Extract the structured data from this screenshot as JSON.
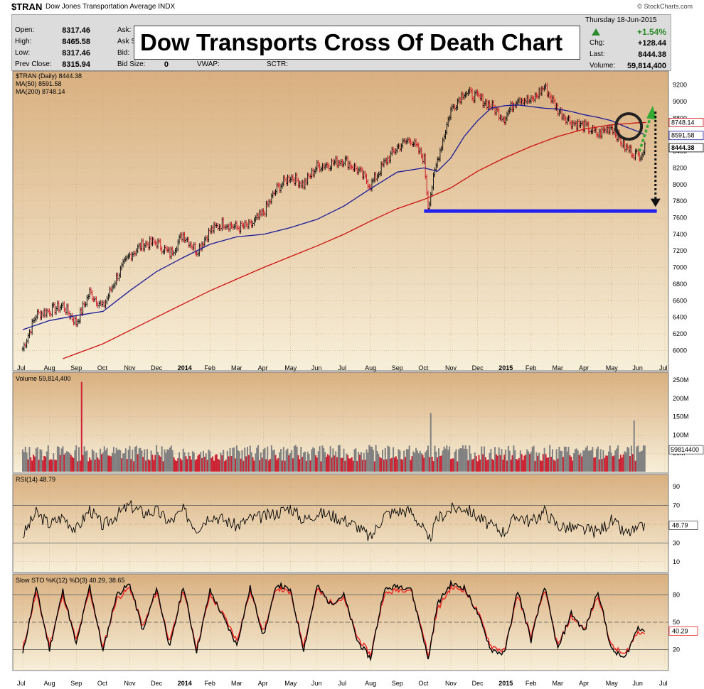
{
  "header": {
    "symbol": "$TRAN",
    "name": "Dow Jones Transportation Average INDX",
    "credit": "© StockCharts.com",
    "date": "Thursday  18-Jun-2015",
    "pct_change": "+1.54%",
    "chg_label": "Chg:",
    "chg_value": "+128.44",
    "last_label": "Last:",
    "last_value": "8444.38",
    "volume_label": "Volume:",
    "volume_value": "59,814,400",
    "open_label": "Open:",
    "open_value": "8317.46",
    "high_label": "High:",
    "high_value": "8465.58",
    "low_label": "Low:",
    "low_value": "8317.46",
    "prev_label": "Prev Close:",
    "prev_value": "8315.94",
    "ask_label": "Ask:",
    "asks_label": "Ask S",
    "bid_label": "Bid:",
    "bidsize_label": "Bid Size:",
    "bidsize_value": "0",
    "vwap_label": "VWAP:",
    "sctr_label": "SCTR:"
  },
  "overlay_title": "Dow Transports Cross Of Death Chart",
  "colors": {
    "panel_top": "#d9b080",
    "panel_bottom": "#f7efd9",
    "price_up": "#000000",
    "price_down": "#cc1122",
    "ma50": "#1a1a99",
    "ma200": "#cc1111",
    "support": "#2222ee",
    "green_arrow": "#33aa33",
    "rsi_line": "#000000",
    "sto_k": "#000000",
    "sto_d": "#ee2222",
    "vol_up": "#808080",
    "vol_down": "#cc2233"
  },
  "chart_data": {
    "type": "line",
    "title": "Dow Transports Cross Of Death Chart",
    "x_months": [
      "Jul",
      "Aug",
      "Sep",
      "Oct",
      "Nov",
      "Dec",
      "2014",
      "Feb",
      "Mar",
      "Apr",
      "May",
      "Jun",
      "Jul",
      "Aug",
      "Sep",
      "Oct",
      "Nov",
      "Dec",
      "2015",
      "Feb",
      "Mar",
      "Apr",
      "May",
      "Jun",
      "Jul"
    ],
    "price_panel": {
      "legend": [
        "$TRAN (Daily) 8444.38",
        "MA(50) 8591.58",
        "MA(200) 8748.14"
      ],
      "y_ticks": [
        6000,
        6200,
        6400,
        6600,
        6800,
        7000,
        7200,
        7400,
        7600,
        7800,
        8000,
        8200,
        8400,
        8600,
        8800,
        9000,
        9200
      ],
      "ylim": [
        5900,
        9300
      ],
      "price_tags": [
        "8748.14",
        "8591.58",
        "8444.38"
      ],
      "series": [
        {
          "name": "$TRAN (Daily) 8444.38",
          "month_idx": [
            0,
            0.5,
            1,
            1.5,
            2,
            2.5,
            3,
            3.5,
            4,
            4.5,
            5,
            5.5,
            6,
            6.5,
            7,
            7.5,
            8,
            8.5,
            9,
            9.5,
            10,
            10.5,
            11,
            11.5,
            12,
            12.5,
            13,
            13.5,
            14,
            14.5,
            15,
            15.15,
            15.5,
            16,
            16.5,
            17,
            17.5,
            18,
            18.5,
            19,
            19.5,
            20,
            20.5,
            21,
            21.5,
            22,
            22.5,
            23,
            23.3
          ],
          "values": [
            6020,
            6430,
            6480,
            6540,
            6330,
            6700,
            6520,
            6880,
            7150,
            7280,
            7300,
            7160,
            7400,
            7200,
            7440,
            7540,
            7480,
            7500,
            7660,
            7950,
            8100,
            8000,
            8220,
            8250,
            8300,
            8180,
            7990,
            8250,
            8450,
            8550,
            8300,
            7740,
            8300,
            8900,
            9120,
            9050,
            8950,
            8800,
            9050,
            9000,
            9180,
            8900,
            8750,
            8700,
            8600,
            8700,
            8450,
            8350,
            8444
          ]
        },
        {
          "name": "MA(50) 8591.58",
          "month_idx": [
            0,
            1,
            2,
            3,
            4,
            5,
            6,
            7,
            8,
            9,
            10,
            11,
            12,
            13,
            14,
            15,
            15.5,
            16,
            16.5,
            17,
            17.5,
            18,
            18.5,
            19,
            19.5,
            20,
            20.5,
            21,
            21.5,
            22,
            22.5,
            23,
            23.3
          ],
          "values": [
            6250,
            6360,
            6420,
            6470,
            6720,
            6950,
            7120,
            7280,
            7370,
            7400,
            7480,
            7580,
            7740,
            7950,
            8150,
            8200,
            8160,
            8320,
            8580,
            8770,
            8920,
            8950,
            8960,
            8940,
            8920,
            8910,
            8880,
            8840,
            8810,
            8770,
            8700,
            8640,
            8591
          ]
        },
        {
          "name": "MA(200) 8748.14",
          "month_idx": [
            1.5,
            2,
            3,
            4,
            5,
            6,
            7,
            8,
            9,
            10,
            11,
            12,
            13,
            14,
            15,
            16,
            17,
            18,
            19,
            20,
            21,
            22,
            23,
            23.3
          ],
          "values": [
            5900,
            5960,
            6080,
            6240,
            6400,
            6560,
            6720,
            6860,
            7000,
            7130,
            7260,
            7400,
            7560,
            7710,
            7820,
            7960,
            8160,
            8320,
            8460,
            8580,
            8670,
            8720,
            8745,
            8748
          ]
        }
      ],
      "support_level": 7680,
      "annotations": [
        "circle at MA cross",
        "green dashed arrow up",
        "black dashed arrow down to support"
      ]
    },
    "volume_panel": {
      "legend": "Volume 59,814,400",
      "y_ticks": [
        "250M",
        "200M",
        "150M",
        "100M",
        "50M"
      ],
      "tag": "59814400"
    },
    "rsi_panel": {
      "legend": "RSI(14) 48.79",
      "y_ticks": [
        90,
        70,
        50,
        30,
        10
      ],
      "tag": "48.79",
      "month_idx": [
        0,
        0.5,
        1,
        1.5,
        2,
        2.5,
        3,
        3.5,
        4,
        4.5,
        5,
        5.5,
        6,
        6.5,
        7,
        7.5,
        8,
        8.5,
        9,
        9.5,
        10,
        10.5,
        11,
        11.5,
        12,
        12.5,
        13,
        13.5,
        14,
        14.5,
        15,
        15.15,
        15.5,
        16,
        16.5,
        17,
        17.5,
        18,
        18.5,
        19,
        19.5,
        20,
        20.5,
        21,
        21.5,
        22,
        22.5,
        23,
        23.3
      ],
      "values": [
        38,
        62,
        50,
        58,
        44,
        66,
        48,
        60,
        70,
        62,
        64,
        52,
        65,
        45,
        60,
        55,
        48,
        56,
        58,
        62,
        68,
        54,
        62,
        60,
        55,
        48,
        35,
        60,
        64,
        64,
        44,
        30,
        56,
        66,
        68,
        58,
        48,
        42,
        60,
        52,
        64,
        48,
        46,
        44,
        42,
        54,
        40,
        44,
        49
      ]
    },
    "sto_panel": {
      "legend": "Slow STO %K(12) %D(3) 40.29, 38.65",
      "y_ticks": [
        80,
        50,
        20
      ],
      "tag": "40.29",
      "month_idx": [
        0,
        0.5,
        1,
        1.5,
        2,
        2.5,
        3,
        3.5,
        4,
        4.5,
        5,
        5.5,
        6,
        6.5,
        7,
        7.5,
        8,
        8.5,
        9,
        9.5,
        10,
        10.5,
        11,
        11.5,
        12,
        12.5,
        13,
        13.5,
        14,
        14.5,
        15,
        15.15,
        15.5,
        16,
        16.5,
        17,
        17.5,
        18,
        18.5,
        19,
        19.5,
        20,
        20.5,
        21,
        21.5,
        22,
        22.5,
        23,
        23.3
      ],
      "k": [
        15,
        88,
        20,
        85,
        25,
        90,
        18,
        80,
        92,
        40,
        88,
        22,
        90,
        18,
        85,
        55,
        25,
        88,
        35,
        92,
        85,
        20,
        90,
        70,
        80,
        30,
        10,
        85,
        90,
        88,
        30,
        8,
        70,
        92,
        88,
        60,
        20,
        15,
        85,
        30,
        90,
        20,
        60,
        40,
        85,
        20,
        10,
        45,
        40
      ],
      "d": [
        20,
        82,
        25,
        80,
        30,
        85,
        22,
        75,
        88,
        45,
        84,
        28,
        86,
        22,
        80,
        58,
        30,
        84,
        40,
        88,
        82,
        25,
        86,
        72,
        76,
        34,
        14,
        80,
        86,
        86,
        34,
        12,
        64,
        88,
        86,
        62,
        24,
        18,
        80,
        34,
        86,
        24,
        56,
        42,
        80,
        24,
        14,
        40,
        38
      ]
    }
  }
}
